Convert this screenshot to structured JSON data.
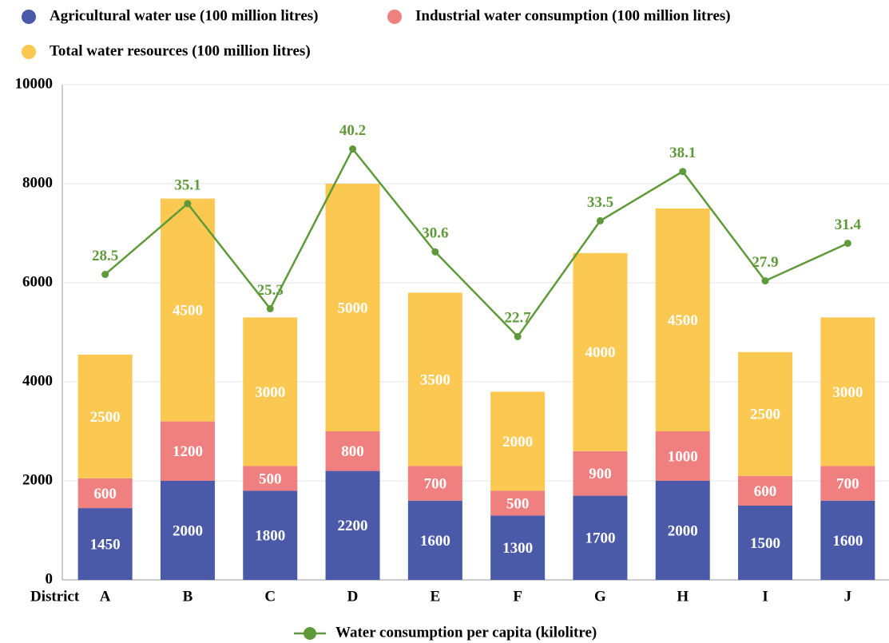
{
  "chart_data": {
    "type": "bar",
    "stacked": true,
    "x_label": "District",
    "categories": [
      "A",
      "B",
      "C",
      "D",
      "E",
      "F",
      "G",
      "H",
      "I",
      "J"
    ],
    "series": [
      {
        "name": "Agricultural water use (100 million litres)",
        "color": "#4a5aa8",
        "values": [
          1450,
          2000,
          1800,
          2200,
          1600,
          1300,
          1700,
          2000,
          1500,
          1600
        ]
      },
      {
        "name": "Industrial water consumption (100 million litres)",
        "color": "#f07f7f",
        "values": [
          600,
          1200,
          500,
          800,
          700,
          500,
          900,
          1000,
          600,
          700
        ]
      },
      {
        "name": "Total water resources (100 million litres)",
        "color": "#fbc852",
        "values": [
          2500,
          4500,
          3000,
          5000,
          3500,
          2000,
          4000,
          4500,
          2500,
          3000
        ]
      },
      {
        "name": "Water consumption per capita (kilolitre)",
        "color": "#5f9a3a",
        "type": "line",
        "axis": "y2",
        "values": [
          28.5,
          35.1,
          25.3,
          40.2,
          30.6,
          22.7,
          33.5,
          38.1,
          27.9,
          31.4
        ]
      }
    ],
    "ylim": [
      0,
      10000
    ],
    "yticks": [
      0,
      2000,
      4000,
      6000,
      8000,
      10000
    ],
    "y2lim": [
      0,
      46.2
    ],
    "grid": true
  }
}
